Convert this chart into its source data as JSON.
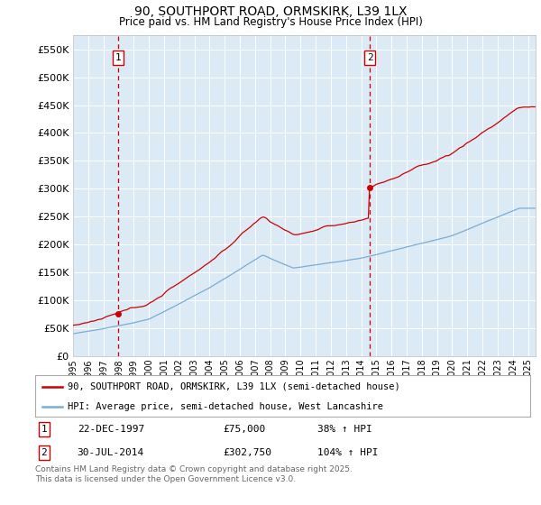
{
  "title_line1": "90, SOUTHPORT ROAD, ORMSKIRK, L39 1LX",
  "title_line2": "Price paid vs. HM Land Registry's House Price Index (HPI)",
  "ylim": [
    0,
    575000
  ],
  "yticks": [
    0,
    50000,
    100000,
    150000,
    200000,
    250000,
    300000,
    350000,
    400000,
    450000,
    500000,
    550000
  ],
  "ytick_labels": [
    "£0",
    "£50K",
    "£100K",
    "£150K",
    "£200K",
    "£250K",
    "£300K",
    "£350K",
    "£400K",
    "£450K",
    "£500K",
    "£550K"
  ],
  "background_color": "#dceaf5",
  "fig_bg_color": "#ffffff",
  "red_line_color": "#cc0000",
  "blue_line_color": "#7aadd4",
  "dashed_line_color": "#cc0000",
  "marker1_x": 1997.97,
  "marker1_y": 75000,
  "marker2_x": 2014.58,
  "marker2_y": 302750,
  "legend_red": "90, SOUTHPORT ROAD, ORMSKIRK, L39 1LX (semi-detached house)",
  "legend_blue": "HPI: Average price, semi-detached house, West Lancashire",
  "footnote": "Contains HM Land Registry data © Crown copyright and database right 2025.\nThis data is licensed under the Open Government Licence v3.0.",
  "xmin": 1995.0,
  "xmax": 2025.5
}
